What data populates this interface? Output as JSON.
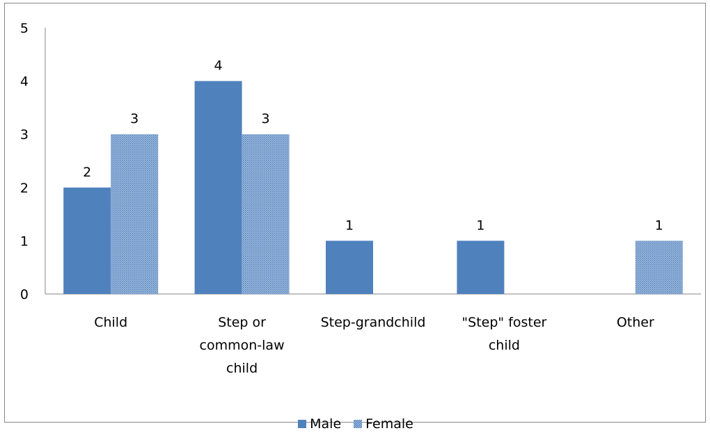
{
  "chart_data": {
    "type": "bar",
    "title": "",
    "xlabel": "",
    "ylabel": "",
    "categories": [
      [
        "Child"
      ],
      [
        "Step or",
        "common-law",
        "child"
      ],
      [
        "Step-grandchild"
      ],
      [
        "\"Step\" foster",
        "child"
      ],
      [
        "Other"
      ]
    ],
    "series": [
      {
        "name": "Male",
        "values": [
          2,
          4,
          1,
          1,
          0
        ],
        "labels": [
          "2",
          "4",
          "1",
          "1",
          ""
        ],
        "color": "#4F81BD",
        "pattern": "solid"
      },
      {
        "name": "Female",
        "values": [
          3,
          3,
          0,
          0,
          1
        ],
        "labels": [
          "3",
          "3",
          "",
          "",
          "1"
        ],
        "color": "#4F81BD",
        "pattern": "dotted"
      }
    ],
    "ylim": [
      0,
      5
    ],
    "yticks": [
      "0",
      "1",
      "2",
      "3",
      "4",
      "5"
    ],
    "grid": false,
    "legend_position": "bottom"
  }
}
